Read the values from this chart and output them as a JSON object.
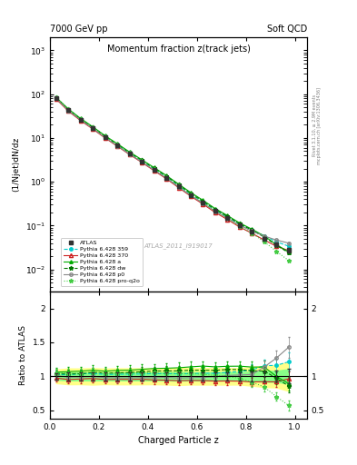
{
  "title_main": "Momentum fraction z(track jets)",
  "header_left": "7000 GeV pp",
  "header_right": "Soft QCD",
  "right_label_top": "Rivet 3.1.10, ≥ 2.9M events",
  "right_label_bottom": "mcplots.cern.ch [arXiv:1306.3436]",
  "watermark": "ATLAS_2011_I919017",
  "ylabel_main": "(1/Njet)dN/dz",
  "ylabel_ratio": "Ratio to ATLAS",
  "xlabel": "Charged Particle z",
  "ylim_main_log": [
    -2.5,
    3.3
  ],
  "ylim_ratio": [
    0.38,
    2.25
  ],
  "xlim": [
    0.0,
    1.05
  ],
  "z_values": [
    0.025,
    0.075,
    0.125,
    0.175,
    0.225,
    0.275,
    0.325,
    0.375,
    0.425,
    0.475,
    0.525,
    0.575,
    0.625,
    0.675,
    0.725,
    0.775,
    0.825,
    0.875,
    0.925,
    0.975
  ],
  "atlas_y": [
    80,
    43,
    26,
    16.5,
    10.5,
    6.8,
    4.4,
    2.9,
    1.9,
    1.25,
    0.79,
    0.5,
    0.33,
    0.215,
    0.148,
    0.1,
    0.073,
    0.051,
    0.037,
    0.028
  ],
  "atlas_yerr": [
    4,
    2.5,
    1.5,
    1.0,
    0.6,
    0.4,
    0.26,
    0.17,
    0.11,
    0.075,
    0.05,
    0.03,
    0.02,
    0.013,
    0.009,
    0.006,
    0.005,
    0.004,
    0.003,
    0.003
  ],
  "py359_y": [
    82,
    44,
    27,
    17.2,
    10.8,
    7.0,
    4.55,
    3.0,
    1.98,
    1.3,
    0.82,
    0.52,
    0.345,
    0.225,
    0.157,
    0.107,
    0.08,
    0.059,
    0.043,
    0.034
  ],
  "py370_y": [
    78,
    41,
    25.0,
    16.0,
    10.0,
    6.5,
    4.2,
    2.78,
    1.8,
    1.18,
    0.74,
    0.47,
    0.31,
    0.2,
    0.138,
    0.093,
    0.067,
    0.047,
    0.034,
    0.027
  ],
  "pya_y": [
    85,
    46,
    28,
    18.0,
    11.3,
    7.4,
    4.8,
    3.2,
    2.12,
    1.4,
    0.89,
    0.57,
    0.38,
    0.245,
    0.17,
    0.115,
    0.083,
    0.058,
    0.037,
    0.025
  ],
  "pydw_y": [
    83,
    44.5,
    27,
    17.5,
    11.0,
    7.15,
    4.65,
    3.1,
    2.05,
    1.35,
    0.855,
    0.545,
    0.36,
    0.234,
    0.163,
    0.11,
    0.079,
    0.055,
    0.036,
    0.024
  ],
  "pyp0_y": [
    81,
    42.5,
    25.8,
    16.5,
    10.3,
    6.65,
    4.3,
    2.85,
    1.86,
    1.23,
    0.77,
    0.49,
    0.325,
    0.214,
    0.15,
    0.102,
    0.075,
    0.058,
    0.047,
    0.04
  ],
  "pyproq2o_y": [
    84,
    45,
    27.2,
    17.5,
    11.0,
    7.1,
    4.6,
    3.05,
    2.0,
    1.31,
    0.825,
    0.52,
    0.34,
    0.218,
    0.148,
    0.097,
    0.067,
    0.043,
    0.026,
    0.016
  ],
  "py359_yerr": [
    1.5,
    0.8,
    0.5,
    0.32,
    0.2,
    0.13,
    0.09,
    0.06,
    0.04,
    0.025,
    0.016,
    0.01,
    0.007,
    0.005,
    0.003,
    0.002,
    0.002,
    0.001,
    0.001,
    0.001
  ],
  "py370_yerr": [
    1.5,
    0.8,
    0.5,
    0.3,
    0.19,
    0.12,
    0.08,
    0.055,
    0.036,
    0.024,
    0.015,
    0.009,
    0.006,
    0.004,
    0.003,
    0.002,
    0.001,
    0.001,
    0.001,
    0.001
  ],
  "pya_yerr": [
    2.0,
    1.0,
    0.6,
    0.38,
    0.24,
    0.16,
    0.1,
    0.07,
    0.045,
    0.03,
    0.019,
    0.012,
    0.008,
    0.005,
    0.004,
    0.003,
    0.002,
    0.002,
    0.001,
    0.001
  ],
  "pydw_yerr": [
    2.0,
    1.0,
    0.6,
    0.36,
    0.23,
    0.15,
    0.1,
    0.065,
    0.042,
    0.028,
    0.018,
    0.011,
    0.007,
    0.005,
    0.003,
    0.002,
    0.002,
    0.001,
    0.001,
    0.001
  ],
  "pyp0_yerr": [
    1.5,
    0.8,
    0.5,
    0.3,
    0.19,
    0.12,
    0.08,
    0.055,
    0.037,
    0.024,
    0.015,
    0.01,
    0.006,
    0.004,
    0.003,
    0.002,
    0.002,
    0.001,
    0.001,
    0.001
  ],
  "pyproq2o_yerr": [
    2.0,
    1.0,
    0.6,
    0.36,
    0.23,
    0.15,
    0.1,
    0.065,
    0.042,
    0.028,
    0.017,
    0.011,
    0.007,
    0.005,
    0.003,
    0.002,
    0.002,
    0.001,
    0.001,
    0.001
  ],
  "atlas_color": "#333333",
  "py359_color": "#00cccc",
  "py370_color": "#cc2222",
  "pya_color": "#00aa00",
  "pydw_color": "#007700",
  "pyp0_color": "#888888",
  "pyproq2o_color": "#44cc44",
  "band_yellow": "#ffff88",
  "band_green": "#88ff88"
}
